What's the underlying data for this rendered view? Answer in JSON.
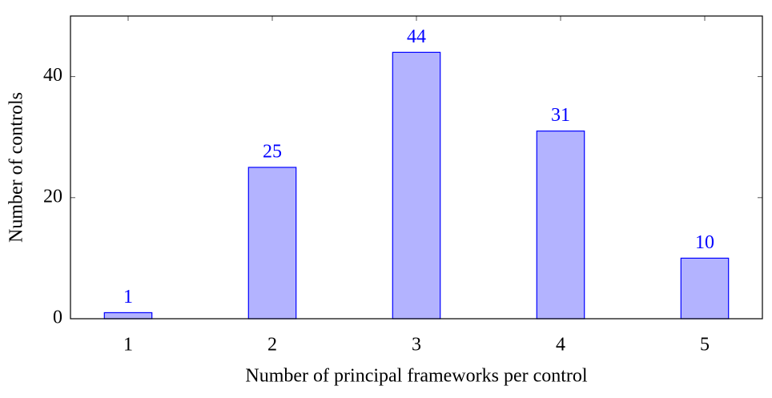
{
  "chart_data": {
    "type": "bar",
    "x": [
      1,
      2,
      3,
      4,
      5
    ],
    "values": [
      1,
      25,
      44,
      31,
      10
    ],
    "xlabel": "Number of principal frameworks per control",
    "ylabel": "Number of controls",
    "xlim": [
      0.6,
      5.4
    ],
    "xticks": [
      1,
      2,
      3,
      4,
      5
    ],
    "ylim": [
      0,
      50
    ],
    "yticks": [
      0,
      20,
      40
    ],
    "color": "#b3b3ff",
    "edge_color": "#0000ff",
    "label_color": "#0000ff",
    "grid": false
  }
}
